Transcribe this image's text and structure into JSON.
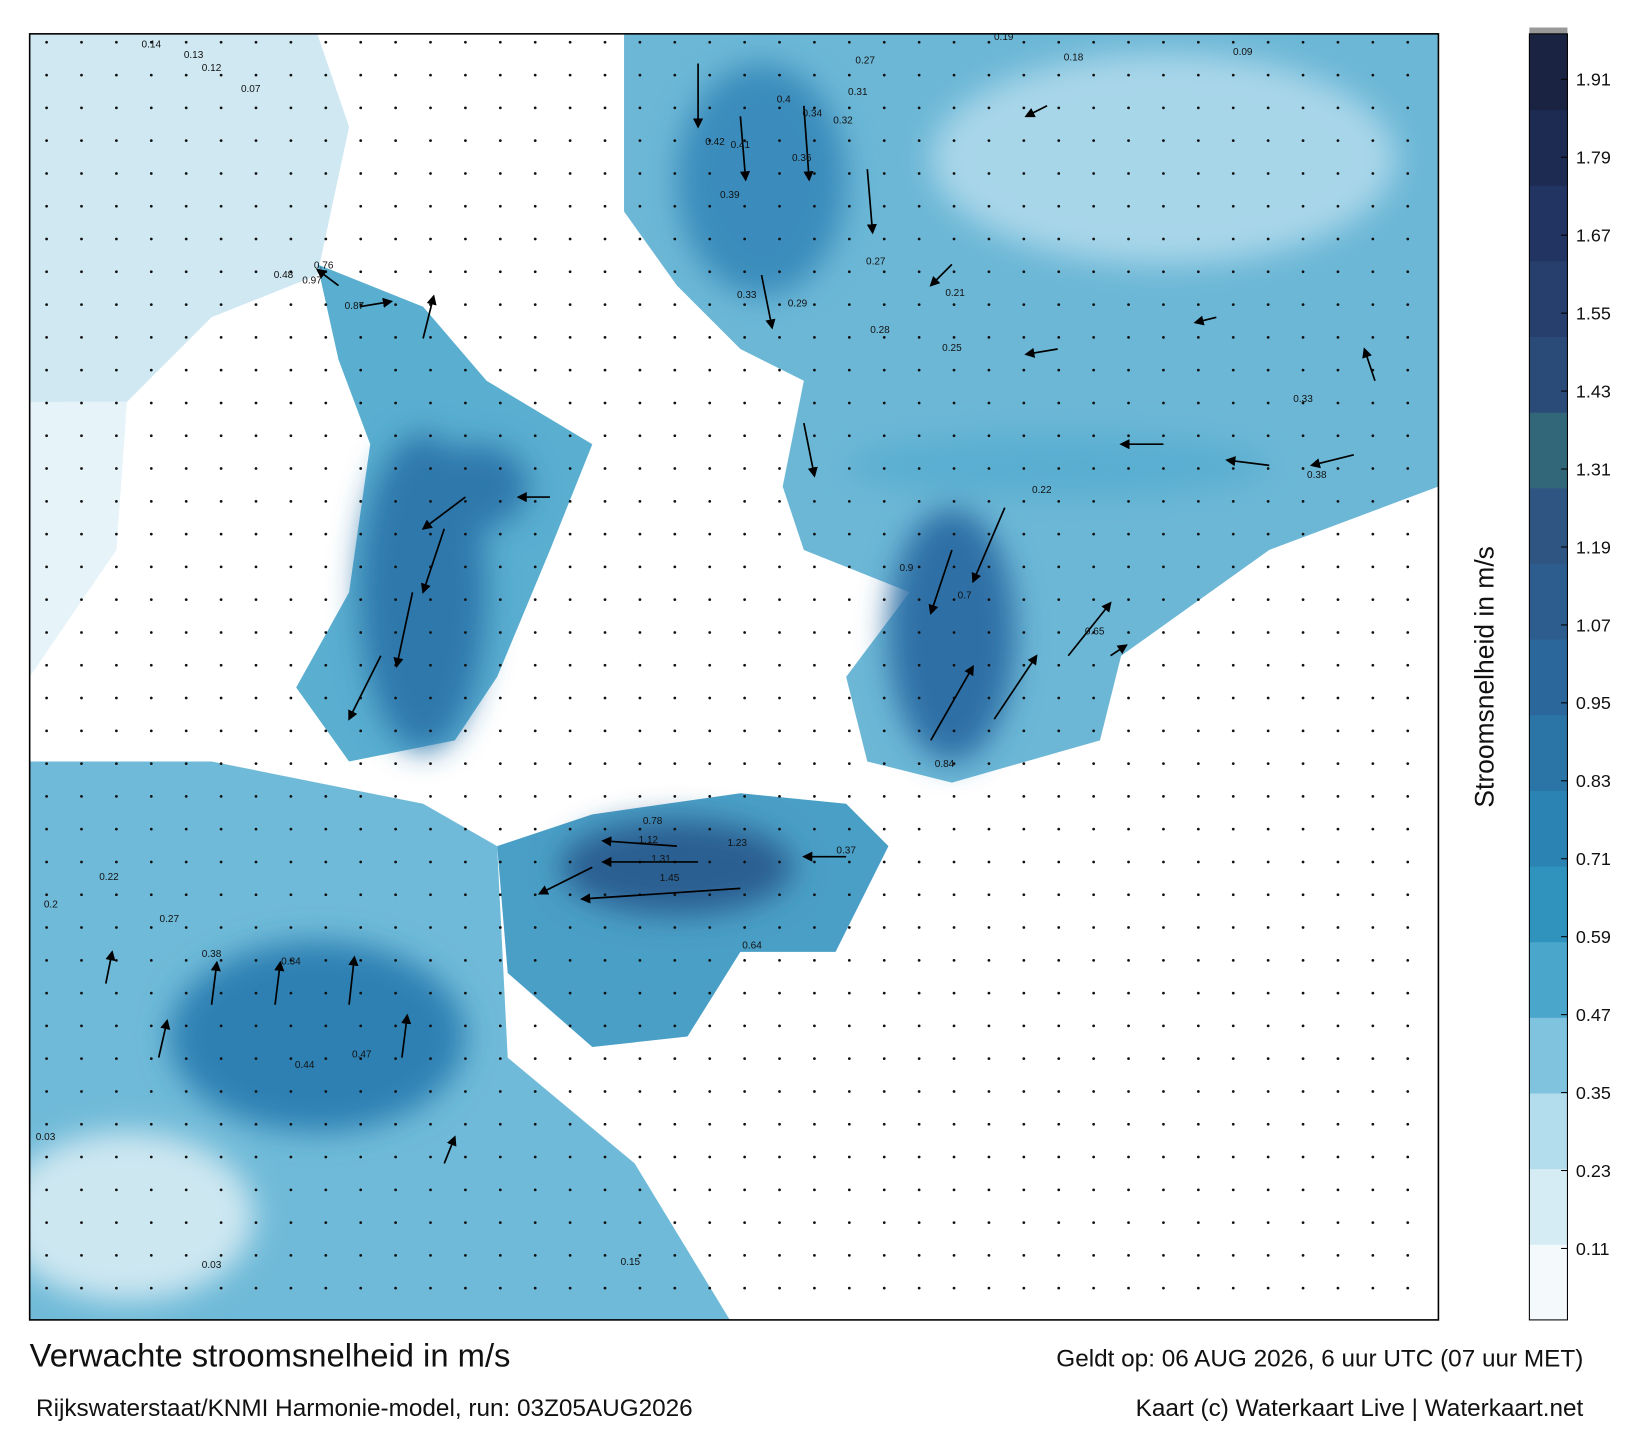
{
  "map": {
    "title": "Verwachte stroomsnelheid in m/s",
    "subtitle": "Rijkswaterstaat/KNMI Harmonie-model, run: 03Z05AUG2026",
    "valid_time": "Geldt op: 06 AUG 2026, 6 uur UTC (07 uur MET)",
    "credit": "Kaart (c) Waterkaart Live | Waterkaart.net",
    "colorbar": {
      "label": "Stroomsnelheid in m/s",
      "clim": [
        0,
        1.98
      ],
      "ticks": [
        0.11,
        0.23,
        0.35,
        0.47,
        0.59,
        0.71,
        0.83,
        0.95,
        1.07,
        1.19,
        1.31,
        1.43,
        1.55,
        1.67,
        1.79,
        1.91
      ],
      "colors": [
        "#f4fafc",
        "#d6ecf4",
        "#b3dcec",
        "#7fc3de",
        "#4aa6cb",
        "#2f93bd",
        "#2a83b2",
        "#2b74a6",
        "#2c679b",
        "#2d5d8f",
        "#2f5582",
        "#32677a",
        "#2a4a78",
        "#263f6d",
        "#223461",
        "#1d2a52",
        "#1b2342"
      ]
    },
    "speed_labels": [
      0.14,
      0.13,
      0.12,
      0.07,
      0.97,
      0.87,
      0.48,
      0.76,
      0.4,
      0.34,
      0.32,
      0.31,
      0.27,
      0.39,
      0.36,
      0.42,
      0.41,
      0.28,
      0.27,
      0.29,
      0.33,
      0.25,
      0.21,
      0.9,
      0.7,
      0.84,
      1.45,
      1.31,
      1.12,
      1.23,
      0.78,
      0.37,
      0.64,
      0.47,
      0.44,
      0.38,
      0.34,
      0.27,
      0.22,
      0.2,
      0.03,
      0.03,
      0.15,
      0.19,
      0.18,
      0.09,
      0.33,
      0.38,
      0.22,
      0.65
    ]
  }
}
